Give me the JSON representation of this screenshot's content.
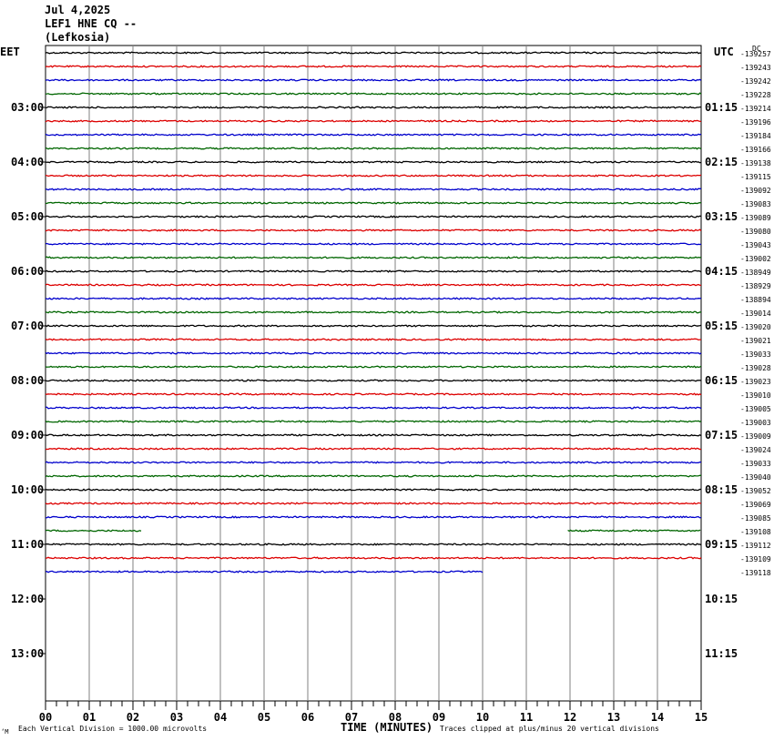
{
  "header": {
    "date": "Jul 4,2025",
    "station": "LEF1 HNE CQ --",
    "location": "(Lefkosia)"
  },
  "left_timezone": "EET",
  "right_timezone": "UTC",
  "dc_label": "DC",
  "footer": {
    "scale_note": "Each Vertical Division = 1000.00 microvolts",
    "xlabel": "TIME (MINUTES)",
    "clip_note": "Traces clipped at plus/minus 20 vertical divisions",
    "logo_mark": "‘M"
  },
  "chart_data": {
    "type": "line",
    "title": "LEF1 HNE CQ -- (Lefkosia)",
    "xlabel": "TIME (MINUTES)",
    "xlim": [
      0,
      15
    ],
    "x_ticks": [
      "00",
      "01",
      "02",
      "03",
      "04",
      "05",
      "06",
      "07",
      "08",
      "09",
      "10",
      "11",
      "12",
      "13",
      "14",
      "15"
    ],
    "left_hour_labels": [
      "03:00",
      "04:00",
      "05:00",
      "06:00",
      "07:00",
      "08:00",
      "09:00",
      "10:00",
      "11:00",
      "12:00",
      "13:00"
    ],
    "right_hour_labels": [
      "01:15",
      "02:15",
      "03:15",
      "04:15",
      "05:15",
      "06:15",
      "07:15",
      "08:15",
      "09:15",
      "10:15",
      "11:15"
    ],
    "left_top_label": "EET",
    "right_top_label": "UTC",
    "trace_colors": [
      "#000000",
      "#dd0000",
      "#0000cc",
      "#006600"
    ],
    "traces": [
      {
        "row": 0,
        "offset": "-139257",
        "start_min": 0,
        "end_min": 15
      },
      {
        "row": 1,
        "offset": "-139243",
        "start_min": 0,
        "end_min": 15
      },
      {
        "row": 2,
        "offset": "-139242",
        "start_min": 0,
        "end_min": 15
      },
      {
        "row": 3,
        "offset": "-139228",
        "start_min": 0,
        "end_min": 15
      },
      {
        "row": 4,
        "offset": "-139214",
        "start_min": 0,
        "end_min": 15
      },
      {
        "row": 5,
        "offset": "-139196",
        "start_min": 0,
        "end_min": 15
      },
      {
        "row": 6,
        "offset": "-139184",
        "start_min": 0,
        "end_min": 15
      },
      {
        "row": 7,
        "offset": "-139166",
        "start_min": 0,
        "end_min": 15
      },
      {
        "row": 8,
        "offset": "-139138",
        "start_min": 0,
        "end_min": 15
      },
      {
        "row": 9,
        "offset": "-139115",
        "start_min": 0,
        "end_min": 15
      },
      {
        "row": 10,
        "offset": "-139092",
        "start_min": 0,
        "end_min": 15
      },
      {
        "row": 11,
        "offset": "-139083",
        "start_min": 0,
        "end_min": 15
      },
      {
        "row": 12,
        "offset": "-139089",
        "start_min": 0,
        "end_min": 15
      },
      {
        "row": 13,
        "offset": "-139080",
        "start_min": 0,
        "end_min": 15
      },
      {
        "row": 14,
        "offset": "-139043",
        "start_min": 0,
        "end_min": 15
      },
      {
        "row": 15,
        "offset": "-139002",
        "start_min": 0,
        "end_min": 15
      },
      {
        "row": 16,
        "offset": "-138949",
        "start_min": 0,
        "end_min": 15
      },
      {
        "row": 17,
        "offset": "-138929",
        "start_min": 0,
        "end_min": 15
      },
      {
        "row": 18,
        "offset": "-138894",
        "start_min": 0,
        "end_min": 15
      },
      {
        "row": 19,
        "offset": "-139014",
        "start_min": 0,
        "end_min": 15
      },
      {
        "row": 20,
        "offset": "-139020",
        "start_min": 0,
        "end_min": 15
      },
      {
        "row": 21,
        "offset": "-139021",
        "start_min": 0,
        "end_min": 15
      },
      {
        "row": 22,
        "offset": "-139033",
        "start_min": 0,
        "end_min": 15
      },
      {
        "row": 23,
        "offset": "-139028",
        "start_min": 0,
        "end_min": 15
      },
      {
        "row": 24,
        "offset": "-139023",
        "start_min": 0,
        "end_min": 15
      },
      {
        "row": 25,
        "offset": "-139010",
        "start_min": 0,
        "end_min": 15
      },
      {
        "row": 26,
        "offset": "-139005",
        "start_min": 0,
        "end_min": 15
      },
      {
        "row": 27,
        "offset": "-139003",
        "start_min": 0,
        "end_min": 15
      },
      {
        "row": 28,
        "offset": "-139009",
        "start_min": 0,
        "end_min": 15
      },
      {
        "row": 29,
        "offset": "-139024",
        "start_min": 0,
        "end_min": 15
      },
      {
        "row": 30,
        "offset": "-139033",
        "start_min": 0,
        "end_min": 15
      },
      {
        "row": 31,
        "offset": "-139040",
        "start_min": 0,
        "end_min": 15
      },
      {
        "row": 32,
        "offset": "-139052",
        "start_min": 0,
        "end_min": 15
      },
      {
        "row": 33,
        "offset": "-139069",
        "start_min": 0,
        "end_min": 15
      },
      {
        "row": 34,
        "offset": "-139085",
        "start_min": 0,
        "end_min": 15
      },
      {
        "row": 35,
        "offset": "-139108",
        "start_min": 0,
        "end_min": 15,
        "gap": [
          2.2,
          11.95
        ]
      },
      {
        "row": 36,
        "offset": "-139112",
        "start_min": 0,
        "end_min": 15
      },
      {
        "row": 37,
        "offset": "-139109",
        "start_min": 0,
        "end_min": 15
      },
      {
        "row": 38,
        "offset": "-139118",
        "start_min": 0,
        "end_min": 10
      }
    ]
  }
}
